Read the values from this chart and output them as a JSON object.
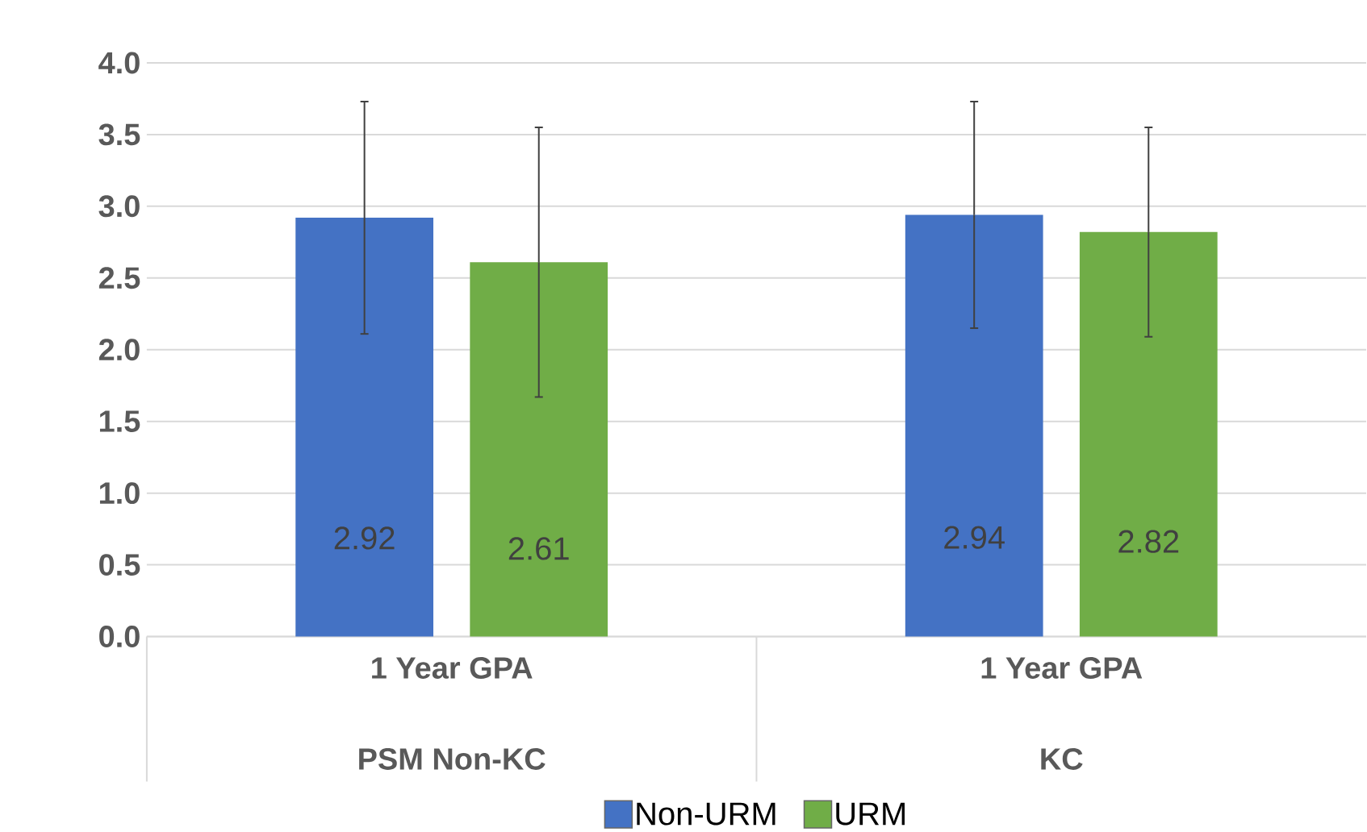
{
  "chart_data": {
    "type": "bar",
    "categories": [
      "1 Year GPA",
      "1 Year GPA"
    ],
    "annotations": [
      "PSM Non-KC",
      "KC"
    ],
    "series": [
      {
        "name": "Non-URM",
        "color": "#4472c4",
        "values": [
          2.92,
          2.94
        ],
        "errors": [
          0.81,
          0.79
        ]
      },
      {
        "name": "URM",
        "color": "#70ad47",
        "values": [
          2.61,
          2.82
        ],
        "errors": [
          0.94,
          0.73
        ]
      }
    ],
    "ylim": [
      0,
      4
    ],
    "yticks": [
      {
        "value": 0,
        "label": "0.0"
      },
      {
        "value": 0.5,
        "label": "0.5"
      },
      {
        "value": 1,
        "label": "1.0"
      },
      {
        "value": 1.5,
        "label": "1.5"
      },
      {
        "value": 2,
        "label": "2.0"
      },
      {
        "value": 2.5,
        "label": "2.5"
      },
      {
        "value": 3,
        "label": "3.0"
      },
      {
        "value": 3.5,
        "label": "3.5"
      },
      {
        "value": 4,
        "label": "4.0"
      }
    ],
    "grid": "y",
    "legend": "bottom",
    "data_labels": true
  }
}
